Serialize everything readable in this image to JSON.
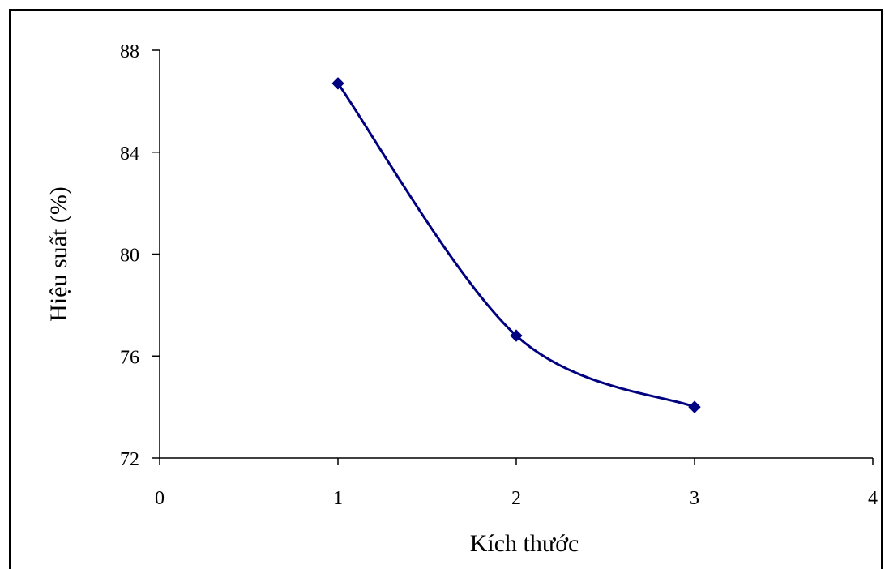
{
  "chart_data": {
    "type": "line",
    "title": "",
    "xlabel": "Kích thước",
    "ylabel": "Hiệu suất (%)",
    "xlim": [
      0,
      4
    ],
    "ylim": [
      72,
      88
    ],
    "xticks": [
      "0",
      "1",
      "2",
      "3",
      "4"
    ],
    "yticks": [
      "72",
      "76",
      "80",
      "84",
      "88"
    ],
    "smooth": true,
    "marker": "diamond",
    "grid": false,
    "legend": "none",
    "colors": {
      "series": "#000080",
      "axes": "#000000",
      "background": "#ffffff"
    },
    "series": [
      {
        "x": [
          1,
          2,
          3
        ],
        "values": [
          86.7,
          76.8,
          74.0
        ]
      }
    ]
  }
}
